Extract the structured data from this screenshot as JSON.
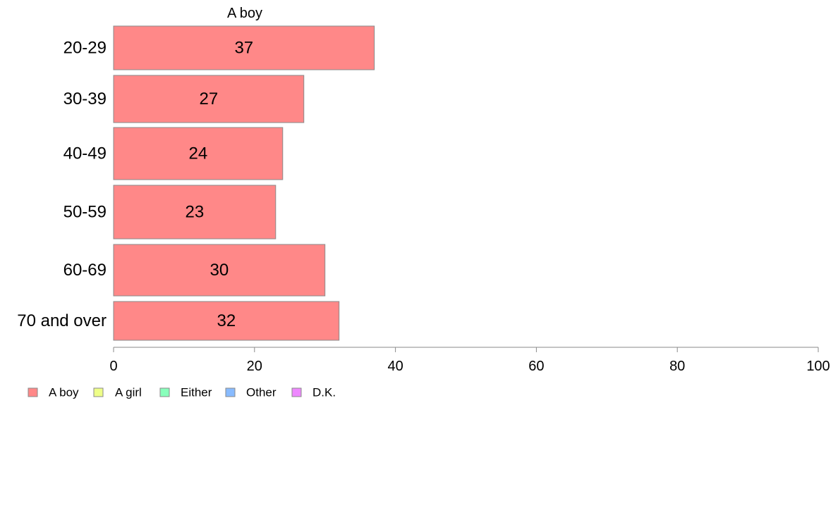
{
  "chart_data": {
    "type": "bar",
    "orientation": "horizontal",
    "title": "A boy",
    "categories": [
      "20-29",
      "30-39",
      "40-49",
      "50-59",
      "60-69",
      "70 and over"
    ],
    "series": [
      {
        "name": "A boy",
        "values": [
          37,
          27,
          24,
          23,
          30,
          32
        ],
        "color": "#ff8888"
      }
    ],
    "xlim": [
      0,
      100
    ],
    "xticks": [
      0,
      20,
      40,
      60,
      80,
      100
    ],
    "grid": false,
    "legend": {
      "placement": "bottom-left",
      "entries": [
        {
          "label": "A boy",
          "color": "#ff8888"
        },
        {
          "label": "A girl",
          "color": "#eeff88"
        },
        {
          "label": "Either",
          "color": "#88ffbb"
        },
        {
          "label": "Other",
          "color": "#88bbff"
        },
        {
          "label": "D.K.",
          "color": "#ee88ff"
        }
      ]
    }
  }
}
